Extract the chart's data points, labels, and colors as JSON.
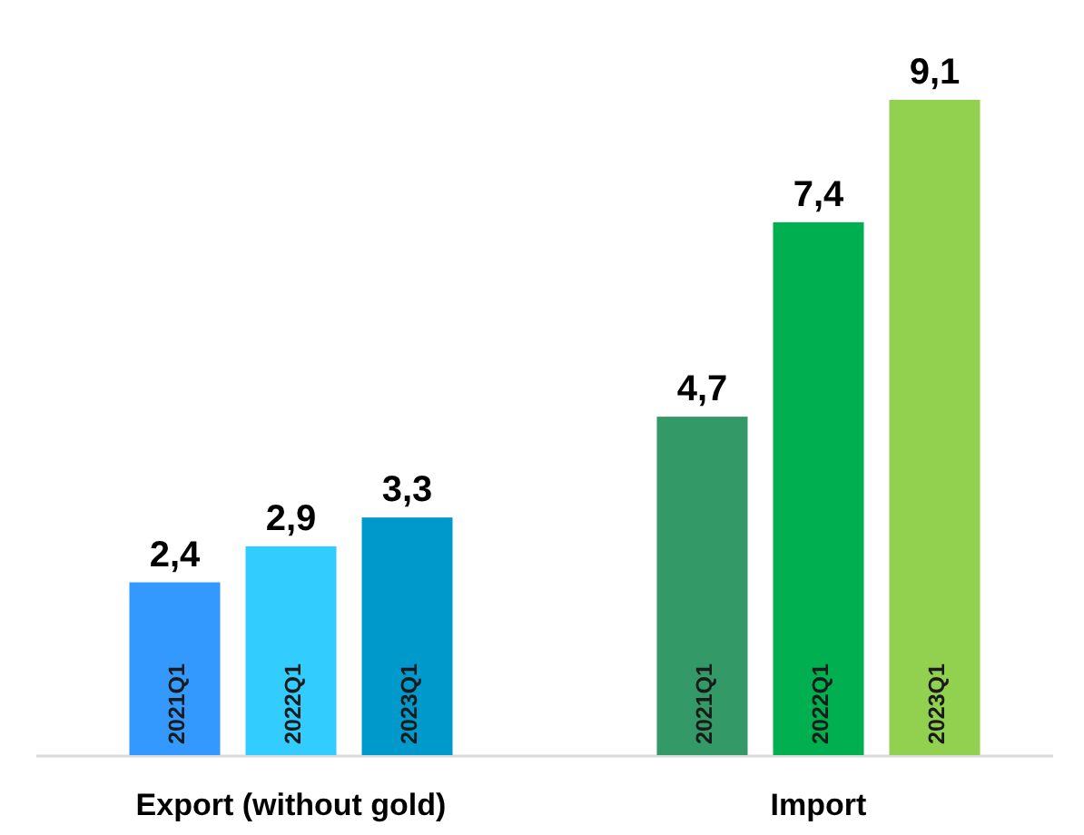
{
  "chart_data": {
    "type": "bar",
    "categories": [
      "Export (without gold)",
      "Import"
    ],
    "series": [
      {
        "name": "2021Q1",
        "colors": [
          "#3399ff",
          "#339966"
        ],
        "values": [
          2.4,
          4.7
        ],
        "value_labels": [
          "2,4",
          "4,7"
        ]
      },
      {
        "name": "2022Q1",
        "colors": [
          "#33ccff",
          "#00b050"
        ],
        "values": [
          2.9,
          7.4
        ],
        "value_labels": [
          "2,9",
          "7,4"
        ]
      },
      {
        "name": "2023Q1",
        "colors": [
          "#0099cc",
          "#92d050"
        ],
        "values": [
          3.3,
          9.1
        ],
        "value_labels": [
          "3,3",
          "9,1"
        ]
      }
    ]
  }
}
